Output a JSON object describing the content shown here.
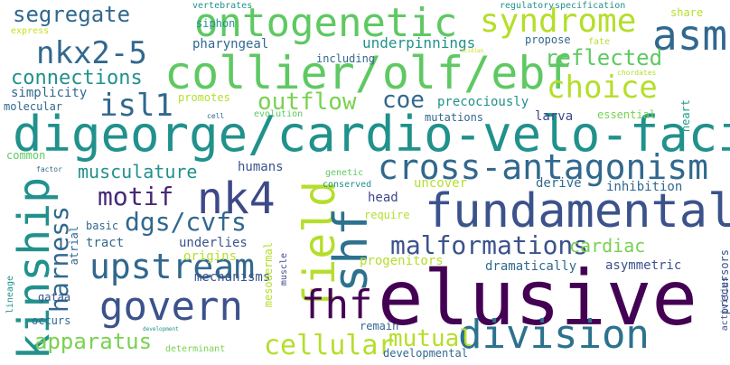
{
  "words": [
    {
      "text": "elusive",
      "color": "#440154"
    },
    {
      "text": "digeorge/cardio-velo-facial",
      "color": "#21918c"
    },
    {
      "text": "collier/olf/ebf",
      "color": "#5ec962"
    },
    {
      "text": "fundamental",
      "color": "#3b528b"
    },
    {
      "text": "ontogenetic",
      "color": "#5ec962"
    },
    {
      "text": "cross-antagonism",
      "color": "#31688e"
    },
    {
      "text": "division",
      "color": "#2c728e"
    },
    {
      "text": "kinship",
      "color": "#21918c"
    },
    {
      "text": "govern",
      "color": "#3b528b"
    },
    {
      "text": "upstream",
      "color": "#31688e"
    },
    {
      "text": "syndrome",
      "color": "#b5de2b"
    },
    {
      "text": "nk4",
      "color": "#3e4989"
    },
    {
      "text": "field",
      "color": "#b5de2b"
    },
    {
      "text": "choice",
      "color": "#b5de2b"
    },
    {
      "text": "shf",
      "color": "#2c728e"
    },
    {
      "text": "fhf",
      "color": "#440154"
    },
    {
      "text": "asm",
      "color": "#31688e"
    },
    {
      "text": "segregate",
      "color": "#31688e"
    },
    {
      "text": "nkx2-5",
      "color": "#31688e"
    },
    {
      "text": "isl1",
      "color": "#31688e"
    },
    {
      "text": "motif",
      "color": "#482878"
    },
    {
      "text": "dgs/cvfs",
      "color": "#31688e"
    },
    {
      "text": "malformations",
      "color": "#3b528b"
    },
    {
      "text": "cellular",
      "color": "#b5de2b"
    },
    {
      "text": "apparatus",
      "color": "#7ad151"
    },
    {
      "text": "outflow",
      "color": "#7ad151"
    },
    {
      "text": "coe",
      "color": "#31688e"
    },
    {
      "text": "reflected",
      "color": "#5ec962"
    },
    {
      "text": "connections",
      "color": "#21918c"
    },
    {
      "text": "harness",
      "color": "#31688e"
    },
    {
      "text": "musculature",
      "color": "#21918c"
    },
    {
      "text": "mutual",
      "color": "#b5de2b"
    },
    {
      "text": "cardiac",
      "color": "#7ad151"
    },
    {
      "text": "underpinnings",
      "color": "#21918c"
    },
    {
      "text": "pharyngeal",
      "color": "#31688e"
    },
    {
      "text": "siphon",
      "color": "#21918c"
    },
    {
      "text": "simplicity",
      "color": "#31688e"
    },
    {
      "text": "precociously",
      "color": "#21918c"
    },
    {
      "text": "including",
      "color": "#31688e"
    },
    {
      "text": "propose",
      "color": "#31688e"
    },
    {
      "text": "share",
      "color": "#b5de2b"
    },
    {
      "text": "express",
      "color": "#c8e020"
    },
    {
      "text": "molecular",
      "color": "#31688e"
    },
    {
      "text": "promotes",
      "color": "#b5de2b"
    },
    {
      "text": "evolution",
      "color": "#5ec962"
    },
    {
      "text": "mutations",
      "color": "#31688e"
    },
    {
      "text": "larva",
      "color": "#3e4989"
    },
    {
      "text": "essential",
      "color": "#7ad151"
    },
    {
      "text": "heart",
      "color": "#1f9e89"
    },
    {
      "text": "common",
      "color": "#5ec962"
    },
    {
      "text": "humans",
      "color": "#3b528b"
    },
    {
      "text": "genetic",
      "color": "#5ec962"
    },
    {
      "text": "conserved",
      "color": "#21918c"
    },
    {
      "text": "uncover",
      "color": "#b5de2b"
    },
    {
      "text": "derive",
      "color": "#31688e"
    },
    {
      "text": "inhibition",
      "color": "#31688e"
    },
    {
      "text": "head",
      "color": "#3e4989"
    },
    {
      "text": "require",
      "color": "#b5de2b"
    },
    {
      "text": "basic",
      "color": "#31688e"
    },
    {
      "text": "tract",
      "color": "#31688e"
    },
    {
      "text": "underlies",
      "color": "#3b528b"
    },
    {
      "text": "origins",
      "color": "#b5de2b"
    },
    {
      "text": "progenitors",
      "color": "#b5de2b"
    },
    {
      "text": "dramatically",
      "color": "#31688e"
    },
    {
      "text": "asymmetric",
      "color": "#3b528b"
    },
    {
      "text": "gataa",
      "color": "#3b528b"
    },
    {
      "text": "mechanisms",
      "color": "#3b528b"
    },
    {
      "text": "occurs",
      "color": "#31688e"
    },
    {
      "text": "remain",
      "color": "#31688e"
    },
    {
      "text": "developmental",
      "color": "#31688e"
    },
    {
      "text": "determinant",
      "color": "#7ad151"
    },
    {
      "text": "mesodermal",
      "color": "#b5de2b"
    },
    {
      "text": "muscle",
      "color": "#3e4989"
    },
    {
      "text": "atrial",
      "color": "#31688e"
    },
    {
      "text": "lineage",
      "color": "#21918c"
    },
    {
      "text": "precursors",
      "color": "#3b528b"
    },
    {
      "text": "activities",
      "color": "#3b528b"
    },
    {
      "text": "vertebrates",
      "color": "#21918c"
    },
    {
      "text": "regulatory",
      "color": "#21918c"
    },
    {
      "text": "specification",
      "color": "#21918c"
    },
    {
      "text": "fate",
      "color": "#b5de2b"
    },
    {
      "text": "chordates",
      "color": "#b5de2b"
    },
    {
      "text": "cell",
      "color": "#31688e"
    },
    {
      "text": "factor",
      "color": "#31688e"
    },
    {
      "text": "development",
      "color": "#21918c"
    },
    {
      "text": "acidian",
      "color": "#c8e020"
    }
  ]
}
